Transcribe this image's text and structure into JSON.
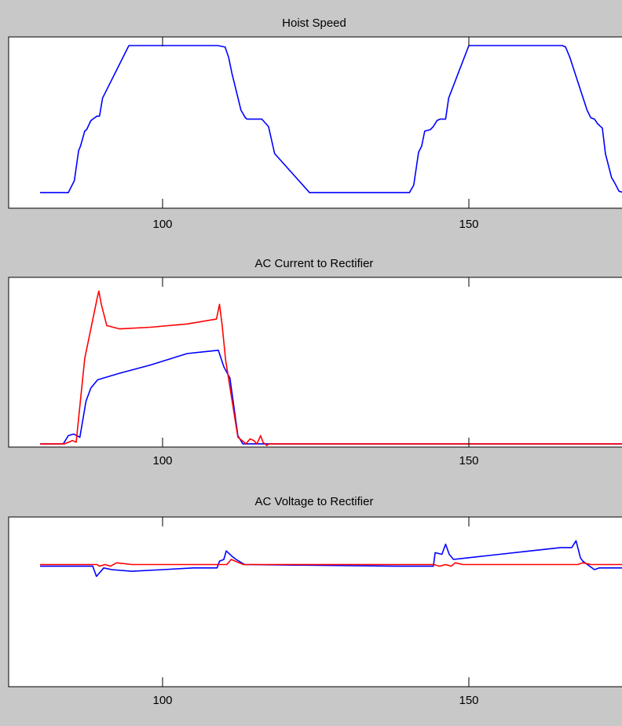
{
  "colors": {
    "background": "#c8c8c8",
    "axes_background": "#ffffff",
    "frame": "#000000",
    "blue_trace": "#0000ff",
    "red_trace": "#ff0000"
  },
  "chart_data": [
    {
      "type": "line",
      "title": "Hoist Speed",
      "xlabel": "",
      "ylabel": "",
      "xlim": [
        80,
        180
      ],
      "ylim": [
        0,
        1
      ],
      "xticks": [
        100,
        150
      ],
      "grid": false,
      "series": [
        {
          "color": "#0000ff",
          "x": [
            80,
            84.6,
            85.6,
            86.3,
            86.6,
            87.3,
            87.6,
            88.3,
            88.6,
            89.3,
            89.7,
            90.2,
            94.5,
            100,
            109,
            110.2,
            110.8,
            111.3,
            112.8,
            113.5,
            113.8,
            114.5,
            115.3,
            116.2,
            117.3,
            118.3,
            124,
            130,
            138,
            140.3,
            141,
            141.8,
            142.3,
            142.8,
            143.7,
            144.2,
            144.8,
            145.3,
            146.2,
            146.7,
            150,
            159.5,
            165.3,
            165.8,
            166.5,
            167.3,
            169.3,
            169.9,
            170.5,
            171,
            171.8,
            172.3,
            173.3,
            173.6,
            174,
            174.5,
            175.3,
            175.8,
            176.5,
            177.2,
            178.3,
            180
          ],
          "y": [
            0.02,
            0.02,
            0.1,
            0.3,
            0.33,
            0.43,
            0.44,
            0.5,
            0.51,
            0.53,
            0.53,
            0.65,
            1.0,
            1.0,
            1.0,
            0.99,
            0.92,
            0.82,
            0.57,
            0.52,
            0.51,
            0.51,
            0.51,
            0.51,
            0.46,
            0.28,
            0.02,
            0.02,
            0.02,
            0.02,
            0.07,
            0.29,
            0.33,
            0.43,
            0.44,
            0.46,
            0.5,
            0.51,
            0.51,
            0.65,
            1.0,
            1.0,
            1.0,
            0.99,
            0.92,
            0.82,
            0.57,
            0.52,
            0.51,
            0.48,
            0.45,
            0.28,
            0.12,
            0.1,
            0.07,
            0.03,
            0.02,
            0.0,
            0.0,
            0.01,
            0.02,
            0.02
          ]
        }
      ]
    },
    {
      "type": "line",
      "title": "AC Current to Rectifier",
      "xlabel": "",
      "ylabel": "",
      "xlim": [
        80,
        180
      ],
      "ylim": [
        0,
        1
      ],
      "xticks": [
        100,
        150
      ],
      "grid": false,
      "series": [
        {
          "color": "#0000ff",
          "x": [
            80,
            83.8,
            84.6,
            85.5,
            86.5,
            87.5,
            88.3,
            89.4,
            93,
            98,
            104,
            109.1,
            110,
            111,
            112.3,
            113.1,
            114.3,
            115,
            150,
            159.5,
            166.8,
            146.2,
            150,
            152,
            163.3,
            168.6,
            169.1,
            169.6,
            170.3,
            170.7,
            171.5,
            171.8,
            172.3,
            172.8,
            173.3,
            173.8,
            174,
            180
          ],
          "y": [
            0.01,
            0.01,
            0.06,
            0.07,
            0.05,
            0.27,
            0.35,
            0.4,
            0.44,
            0.49,
            0.56,
            0.58,
            0.48,
            0.41,
            0.06,
            0.01,
            0.01,
            0.01,
            0.01,
            0.01,
            0.01,
            0.01,
            0.01,
            0.01,
            0.01,
            0.01,
            0.01,
            0.01,
            0.01,
            0.01,
            0.01,
            0.01,
            0.01,
            0.01,
            0.01,
            0.01,
            0.01,
            0.01
          ]
        },
        {
          "color": "#ff0000",
          "x": [
            80,
            84,
            85.3,
            85.9,
            87.3,
            89.4,
            89.6,
            90,
            90.9,
            93,
            98,
            104,
            108.8,
            109.3,
            109.7,
            110.3,
            112.3,
            113.3,
            113.6,
            114.3,
            114.9,
            115.4,
            116,
            116.4,
            117,
            117.4,
            180
          ],
          "y": [
            0.01,
            0.01,
            0.03,
            0.02,
            0.53,
            0.91,
            0.94,
            0.86,
            0.73,
            0.71,
            0.72,
            0.74,
            0.77,
            0.86,
            0.74,
            0.52,
            0.05,
            0.02,
            0.01,
            0.04,
            0.03,
            0.01,
            0.06,
            0.02,
            0.0,
            0.01,
            0.01
          ]
        }
      ]
    },
    {
      "type": "line",
      "title": "AC Voltage to Rectifier",
      "xlabel": "",
      "ylabel": "",
      "xlim": [
        80,
        180
      ],
      "ylim": [
        0,
        1
      ],
      "xticks": [
        100,
        150
      ],
      "grid": false,
      "series": [
        {
          "color": "#0000ff",
          "x": [
            80,
            88.6,
            89.2,
            90.4,
            91.7,
            95,
            100,
            105,
            108.9,
            109.3,
            110,
            110.4,
            111.3,
            112,
            113.4,
            138,
            144.2,
            144.5,
            145.6,
            146.2,
            146.8,
            147.5,
            150,
            155,
            160,
            165,
            166.8,
            167.5,
            168.2,
            168.6,
            170.5,
            171.3,
            173,
            180
          ],
          "y": [
            0.71,
            0.71,
            0.65,
            0.7,
            0.69,
            0.68,
            0.69,
            0.7,
            0.7,
            0.74,
            0.75,
            0.8,
            0.77,
            0.75,
            0.72,
            0.71,
            0.71,
            0.79,
            0.78,
            0.84,
            0.78,
            0.75,
            0.76,
            0.78,
            0.8,
            0.82,
            0.82,
            0.86,
            0.76,
            0.74,
            0.69,
            0.7,
            0.7,
            0.7
          ]
        },
        {
          "color": "#ff0000",
          "x": [
            80,
            88.6,
            89.3,
            89.7,
            90.6,
            91.5,
            92.5,
            95,
            100,
            105,
            110.5,
            111.2,
            112.5,
            113.2,
            140,
            144.3,
            145.2,
            146.2,
            147.1,
            147.8,
            149,
            155,
            160,
            165,
            167.8,
            168.6,
            170,
            180
          ],
          "y": [
            0.72,
            0.72,
            0.72,
            0.71,
            0.72,
            0.71,
            0.73,
            0.72,
            0.72,
            0.72,
            0.72,
            0.75,
            0.73,
            0.72,
            0.72,
            0.72,
            0.71,
            0.72,
            0.71,
            0.73,
            0.72,
            0.72,
            0.72,
            0.72,
            0.72,
            0.73,
            0.72,
            0.72
          ]
        }
      ]
    }
  ]
}
